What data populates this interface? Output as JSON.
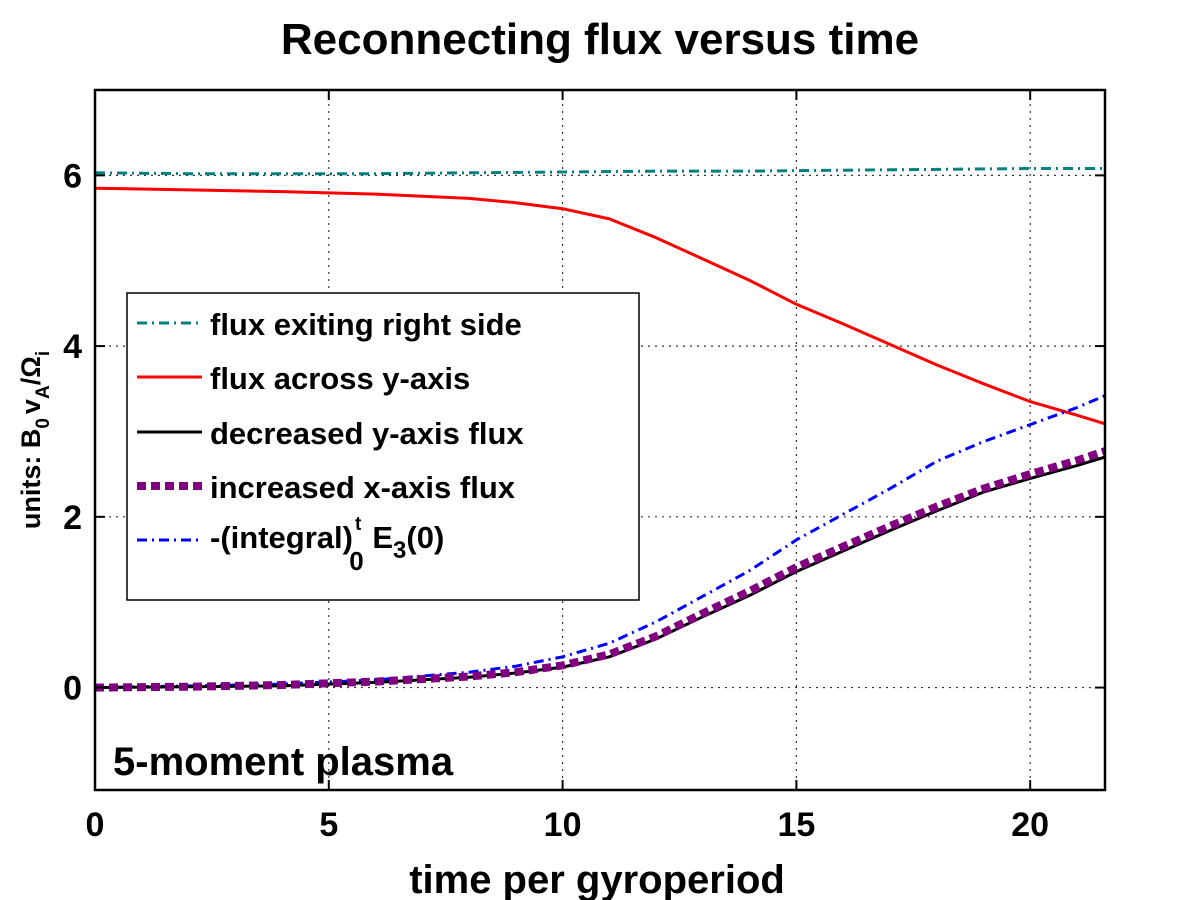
{
  "chart_data": {
    "type": "line",
    "title": "Reconnecting flux versus time",
    "xlabel": "time per gyroperiod",
    "ylabel": {
      "prefix": "units: B",
      "sub1": "0",
      "mid": "v",
      "sub2": "A",
      "slash": "/Ω",
      "sub3": "i"
    },
    "annotation": "5-moment plasma",
    "xlim": [
      0,
      21.6
    ],
    "ylim": [
      -1.2,
      7
    ],
    "xticks": [
      0,
      5,
      10,
      15,
      20
    ],
    "xtick_labels": [
      "0",
      "5",
      "10",
      "15",
      "20"
    ],
    "yticks": [
      0,
      2,
      4,
      6
    ],
    "ytick_labels": [
      "0",
      "2",
      "4",
      "6"
    ],
    "grid": true,
    "legend_position": "left",
    "series": [
      {
        "name": "flux exiting right side",
        "color": "#008080",
        "style": "dash-dot",
        "x": [
          0,
          2,
          4,
          6,
          8,
          10,
          12,
          14,
          16,
          18,
          20,
          21.6
        ],
        "y": [
          6.03,
          6.02,
          6.02,
          6.02,
          6.03,
          6.04,
          6.05,
          6.05,
          6.06,
          6.07,
          6.08,
          6.08
        ]
      },
      {
        "name": "flux across y-axis",
        "color": "#ff0000",
        "style": "solid",
        "x": [
          0,
          2,
          4,
          6,
          8,
          9,
          10,
          11,
          12,
          13,
          14,
          15,
          16,
          17,
          18,
          19,
          20,
          21,
          21.6
        ],
        "y": [
          5.85,
          5.83,
          5.81,
          5.78,
          5.73,
          5.68,
          5.61,
          5.49,
          5.27,
          5.02,
          4.77,
          4.49,
          4.26,
          4.02,
          3.78,
          3.56,
          3.35,
          3.19,
          3.09
        ]
      },
      {
        "name": "decreased y-axis flux",
        "color": "#000000",
        "style": "solid",
        "x": [
          0,
          2,
          4,
          6,
          8,
          9,
          10,
          11,
          12,
          13,
          14,
          15,
          16,
          17,
          18,
          19,
          20,
          21,
          21.6
        ],
        "y": [
          0.0,
          0.01,
          0.02,
          0.06,
          0.12,
          0.17,
          0.24,
          0.36,
          0.57,
          0.83,
          1.08,
          1.36,
          1.6,
          1.84,
          2.07,
          2.29,
          2.45,
          2.6,
          2.7
        ]
      },
      {
        "name": "increased x-axis flux",
        "color": "#800080",
        "style": "thick-dashed",
        "x": [
          0,
          2,
          4,
          6,
          8,
          9,
          10,
          11,
          12,
          13,
          14,
          15,
          16,
          17,
          18,
          19,
          20,
          21,
          21.6
        ],
        "y": [
          0.0,
          0.01,
          0.03,
          0.07,
          0.13,
          0.18,
          0.26,
          0.39,
          0.6,
          0.87,
          1.13,
          1.41,
          1.65,
          1.89,
          2.12,
          2.33,
          2.5,
          2.66,
          2.77
        ]
      },
      {
        "name": "-(integral)",
        "name_sup": "t",
        "name_sub": "0",
        "name_tail": " E",
        "name_sub2": "3",
        "name_end": "(0)",
        "color": "#0000ff",
        "style": "dash-dot",
        "x": [
          0,
          2,
          4,
          6,
          8,
          9,
          10,
          11,
          12,
          13,
          14,
          15,
          16,
          17,
          18,
          19,
          20,
          21,
          21.6
        ],
        "y": [
          0.0,
          0.02,
          0.04,
          0.09,
          0.18,
          0.25,
          0.36,
          0.52,
          0.77,
          1.07,
          1.37,
          1.73,
          2.03,
          2.33,
          2.65,
          2.88,
          3.08,
          3.28,
          3.42
        ]
      }
    ]
  }
}
